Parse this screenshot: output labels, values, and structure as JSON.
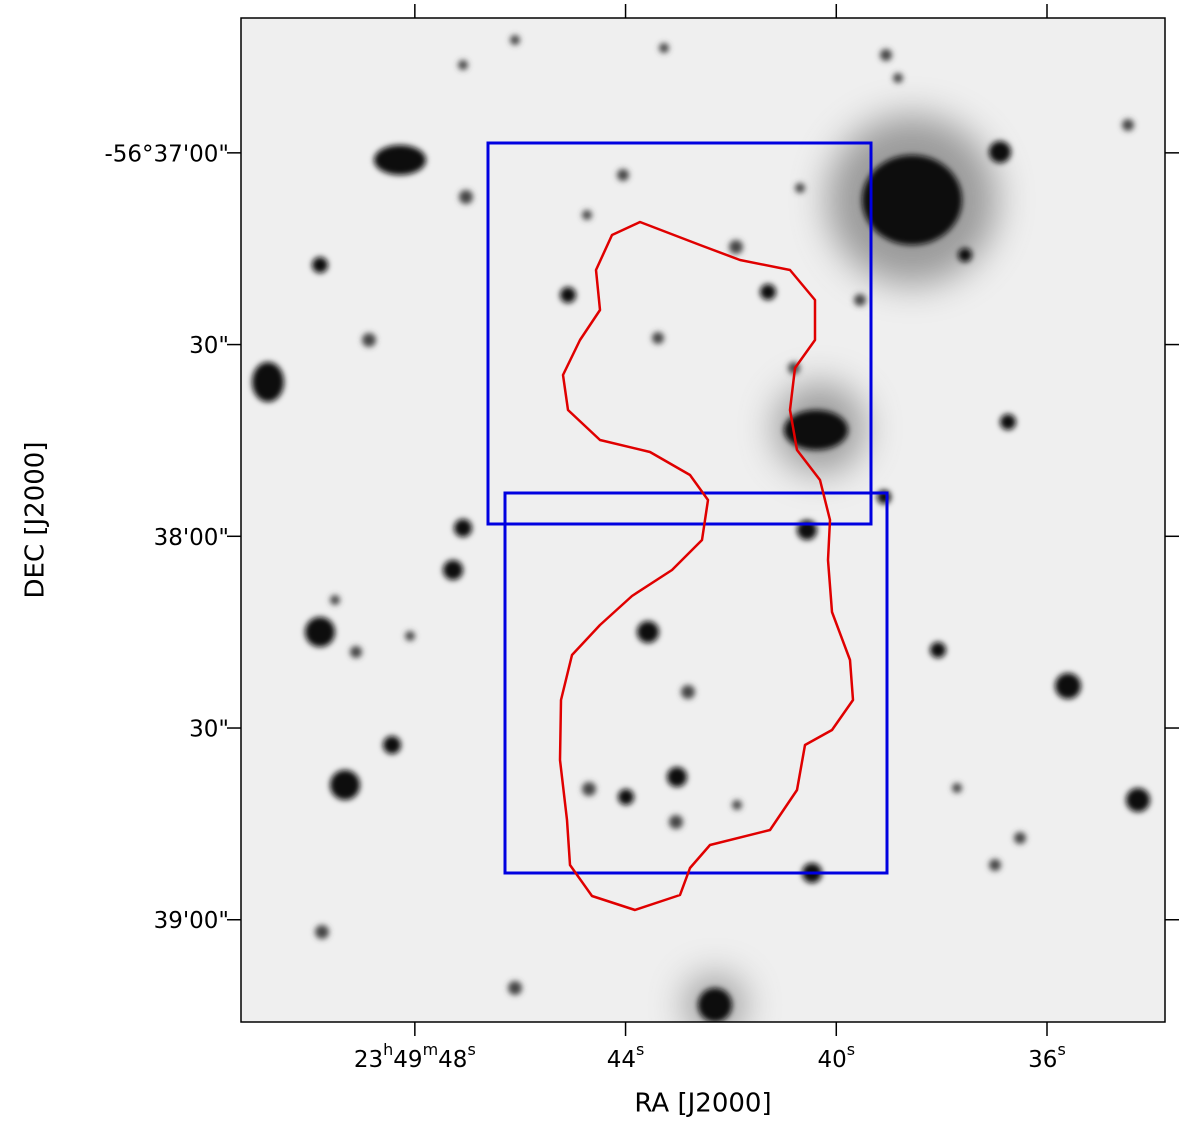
{
  "chart_data": {
    "type": "image",
    "xlabel": "RA [J2000]",
    "ylabel": "DEC [J2000]",
    "xlim": [
      51.3,
      33.76
    ],
    "xticks": [
      {
        "value": 48,
        "label": "23h49m48s"
      },
      {
        "value": 44,
        "label": "44s"
      },
      {
        "value": 40,
        "label": "40s"
      },
      {
        "value": 36,
        "label": "36s"
      }
    ],
    "ylim": [
      -203798.9,
      -203956
    ],
    "yticks": [
      {
        "value": -203820,
        "label": "-56°37'00\""
      },
      {
        "value": -203850,
        "label": "30\""
      },
      {
        "value": -203880,
        "label": "38'00\""
      },
      {
        "value": -203910,
        "label": "30\""
      },
      {
        "value": -203940,
        "label": "39'00\""
      }
    ]
  }
}
